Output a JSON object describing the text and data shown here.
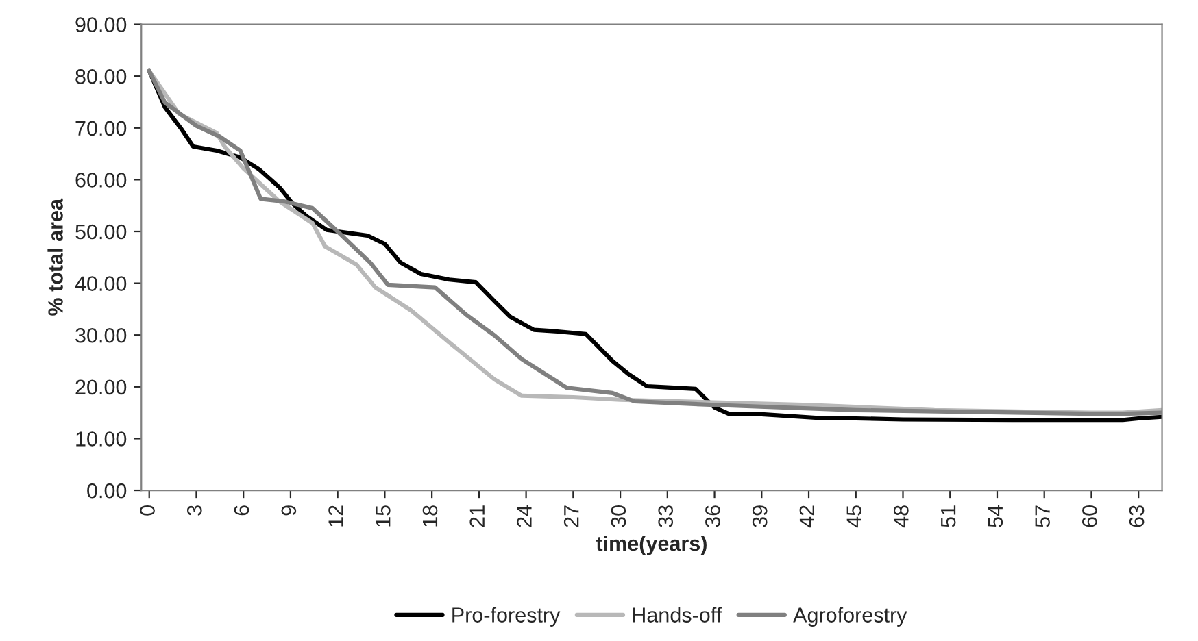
{
  "chart_data": {
    "type": "line",
    "xlabel": "time(years)",
    "ylabel": "% total area",
    "xlim": [
      -0.5,
      64.5
    ],
    "xticks": [
      0,
      3,
      6,
      9,
      12,
      15,
      18,
      21,
      24,
      27,
      30,
      33,
      36,
      39,
      42,
      45,
      48,
      51,
      54,
      57,
      60,
      63
    ],
    "ylim": [
      0,
      90
    ],
    "yticks": [
      {
        "value": 0,
        "label": "0.00"
      },
      {
        "value": 10,
        "label": "10.00"
      },
      {
        "value": 20,
        "label": "20.00"
      },
      {
        "value": 30,
        "label": "30.00"
      },
      {
        "value": 40,
        "label": "40.00"
      },
      {
        "value": 50,
        "label": "50.00"
      },
      {
        "value": 60,
        "label": "60.00"
      },
      {
        "value": 70,
        "label": "70.00"
      },
      {
        "value": 80,
        "label": "80.00"
      },
      {
        "value": 90,
        "label": "90.00"
      }
    ],
    "grid": false,
    "legend": "bottom",
    "marker": "none",
    "series": [
      {
        "name": "Pro-forestry",
        "color": "#000000",
        "x": [
          0,
          1,
          2,
          2.8,
          4.3,
          5.8,
          7,
          8.3,
          9.1,
          10,
          11.3,
          12,
          13.9,
          15,
          16,
          17.3,
          19.1,
          20.8,
          22,
          23,
          24.5,
          26,
          27.8,
          29.5,
          30.5,
          31.7,
          33,
          34.8,
          36,
          36.9,
          39,
          42.6,
          45,
          48,
          55,
          62,
          63,
          64.5
        ],
        "values": [
          81,
          74,
          70,
          66.4,
          65.6,
          64.3,
          62,
          58.5,
          55.5,
          53,
          50.3,
          50,
          49.2,
          47.6,
          44,
          41.8,
          40.7,
          40.2,
          36.5,
          33.5,
          31,
          30.7,
          30.2,
          25,
          22.5,
          20.1,
          19.9,
          19.6,
          16,
          14.8,
          14.7,
          14,
          13.9,
          13.7,
          13.6,
          13.6,
          13.9,
          14.2
        ]
      },
      {
        "name": "Hands-off",
        "color": "#b8b8b8",
        "x": [
          0,
          1.9,
          4.3,
          4.8,
          6,
          8.3,
          10.4,
          11.2,
          13.2,
          14.4,
          16.7,
          19.1,
          22,
          23.7,
          27,
          30,
          36,
          42,
          50,
          60,
          62,
          64.5
        ],
        "values": [
          81,
          72.7,
          69,
          66.4,
          62.2,
          55.8,
          51.6,
          47.1,
          43.6,
          39.2,
          34.7,
          28.6,
          21.4,
          18.3,
          18,
          17.5,
          17,
          16.5,
          15.5,
          15,
          15,
          15.5
        ]
      },
      {
        "name": "Agroforestry",
        "color": "#808080",
        "x": [
          0,
          1,
          3,
          4.5,
          5.8,
          7.1,
          8.6,
          10.4,
          12.1,
          14.1,
          15.2,
          18.2,
          20.2,
          22,
          23.7,
          26.6,
          29.5,
          30.9,
          36,
          45,
          60,
          62,
          64.5
        ],
        "values": [
          81,
          74.9,
          70.4,
          68.3,
          65.6,
          56.3,
          55.8,
          54.5,
          49.7,
          43.9,
          39.7,
          39.2,
          33.9,
          29.9,
          25.4,
          19.8,
          18.8,
          17.2,
          16.5,
          15.5,
          14.8,
          14.8,
          15
        ]
      }
    ]
  }
}
